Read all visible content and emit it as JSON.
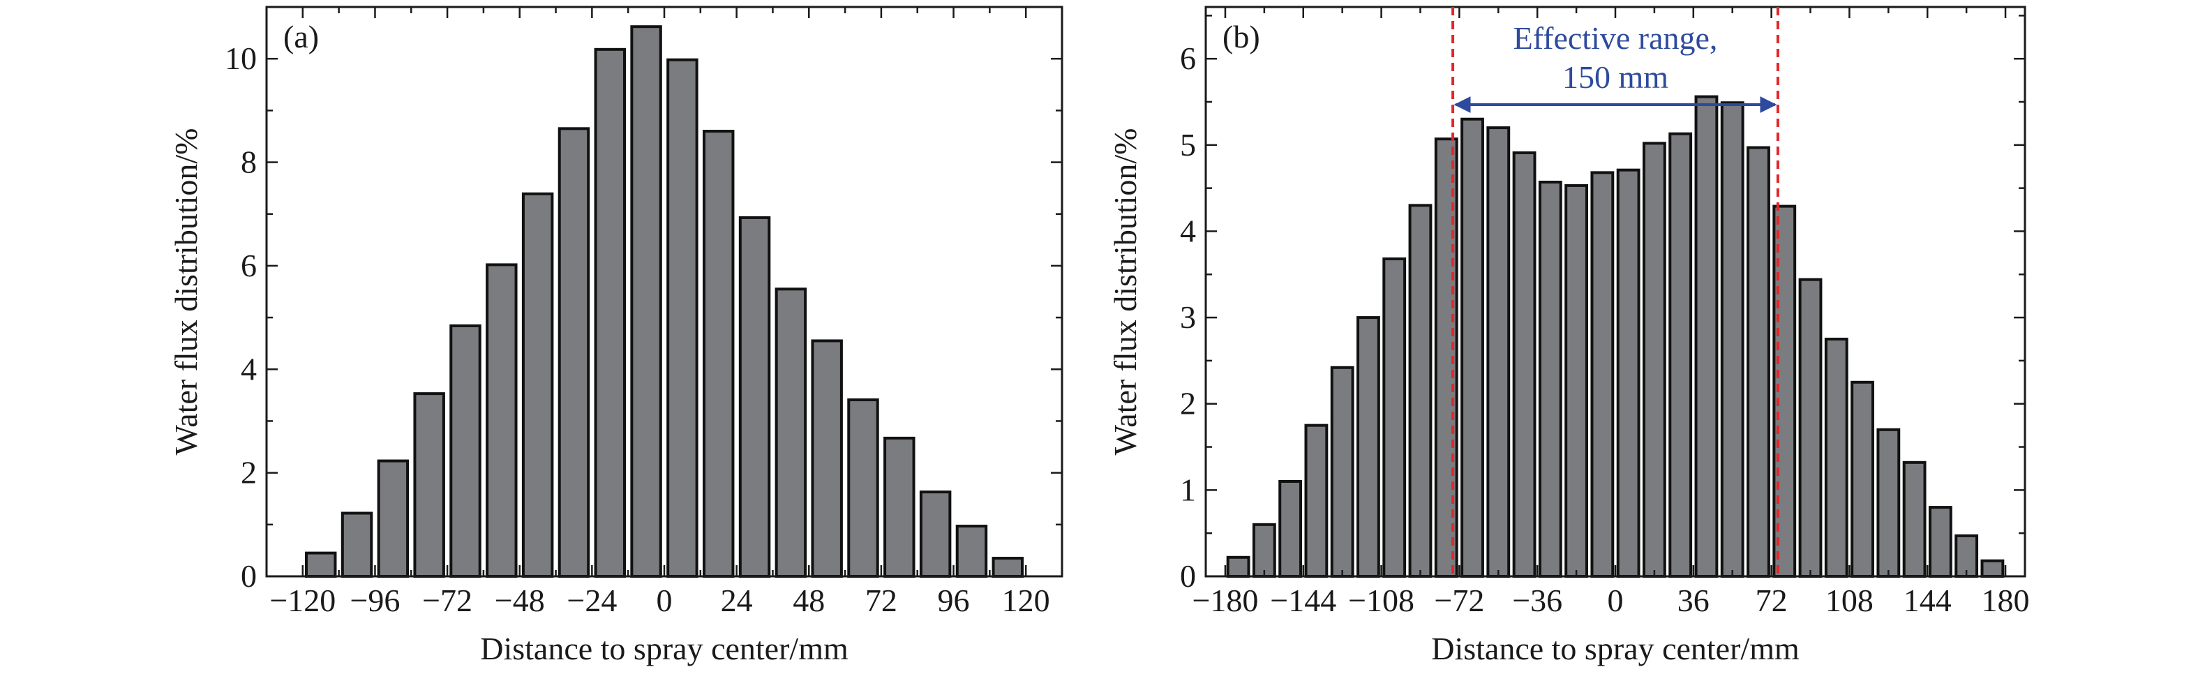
{
  "chart_data": [
    {
      "type": "bar",
      "panel_label": "(a)",
      "xlabel": "Distance to spray center/mm",
      "ylabel": "Water flux distribution/%",
      "xlim": [
        -132,
        132
      ],
      "ylim": [
        0,
        11
      ],
      "x_ticks": [
        -120,
        -96,
        -72,
        -48,
        -24,
        0,
        24,
        48,
        72,
        96,
        120
      ],
      "y_ticks": [
        0,
        2,
        4,
        6,
        8,
        10
      ],
      "x_tick_labels": [
        "−120",
        "−96",
        "−72",
        "−48",
        "−24",
        "0",
        "24",
        "48",
        "72",
        "96",
        "120"
      ],
      "y_tick_labels": [
        "0",
        "2",
        "4",
        "6",
        "8",
        "10"
      ],
      "bar_width": 9.6,
      "x": [
        -114,
        -102,
        -90,
        -78,
        -66,
        -54,
        -42,
        -30,
        -18,
        -6,
        6,
        18,
        30,
        42,
        54,
        66,
        78,
        90,
        102,
        114
      ],
      "values": [
        0.45,
        1.22,
        2.23,
        3.53,
        4.84,
        6.02,
        7.39,
        8.65,
        10.18,
        10.62,
        9.98,
        8.6,
        6.93,
        5.55,
        4.55,
        3.41,
        2.67,
        1.63,
        0.97,
        0.35
      ],
      "bar_color": "#7b7c80",
      "grid": false
    },
    {
      "type": "bar",
      "panel_label": "(b)",
      "xlabel": "Distance to spray center/mm",
      "ylabel": "Water flux distribution/%",
      "xlim": [
        -189,
        189
      ],
      "ylim": [
        0,
        6.6
      ],
      "x_ticks": [
        -180,
        -144,
        -108,
        -72,
        -36,
        0,
        36,
        72,
        108,
        144,
        180
      ],
      "y_ticks": [
        0,
        1,
        2,
        3,
        4,
        5,
        6
      ],
      "x_tick_labels": [
        "−180",
        "−144",
        "−108",
        "−72",
        "−36",
        "0",
        "36",
        "72",
        "108",
        "144",
        "180"
      ],
      "y_tick_labels": [
        "0",
        "1",
        "2",
        "3",
        "4",
        "5",
        "6"
      ],
      "bar_width": 9.6,
      "x": [
        -174,
        -162,
        -150,
        -138,
        -126,
        -114,
        -102,
        -90,
        -78,
        -66,
        -54,
        -42,
        -30,
        -18,
        -6,
        6,
        18,
        30,
        42,
        54,
        66,
        78,
        90,
        102,
        114,
        126,
        138,
        150,
        162,
        174
      ],
      "values": [
        0.22,
        0.6,
        1.1,
        1.75,
        2.42,
        3.0,
        3.68,
        4.3,
        5.07,
        5.3,
        5.2,
        4.91,
        4.57,
        4.53,
        4.68,
        4.71,
        5.02,
        5.13,
        5.56,
        5.49,
        4.97,
        4.29,
        3.44,
        2.75,
        2.25,
        1.7,
        1.32,
        0.8,
        0.47,
        0.18
      ],
      "bar_color": "#7b7c80",
      "grid": false,
      "annotation": {
        "text_line1": "Effective range,",
        "text_line2": "150 mm",
        "x_start": -75,
        "x_end": 75,
        "line_color": "#e0282b",
        "arrow_color": "#2e4a9c",
        "text_color": "#2e4a9c"
      }
    }
  ]
}
